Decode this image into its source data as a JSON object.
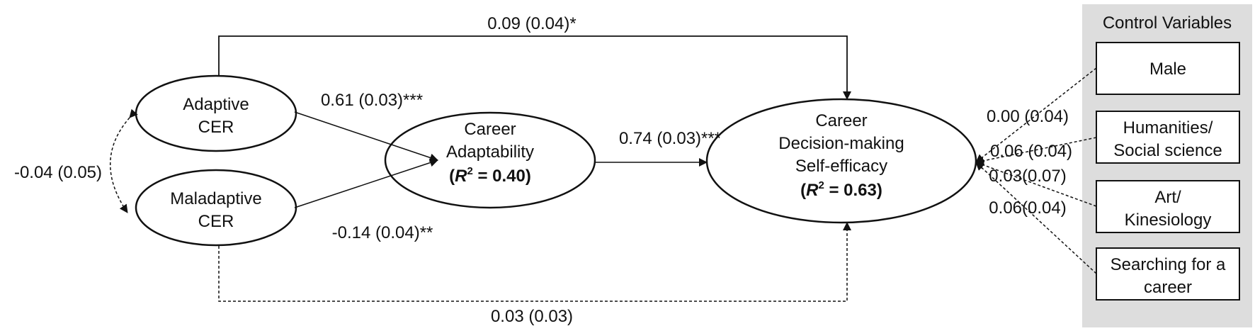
{
  "nodes": {
    "adaptive_cer": {
      "line1": "Adaptive",
      "line2": "CER"
    },
    "maladaptive_cer": {
      "line1": "Maladaptive",
      "line2": "CER"
    },
    "career_adaptability": {
      "line1": "Career",
      "line2": "Adaptability",
      "r2_symbol": "R",
      "r2_superscript": "2",
      "r2_value": " = 0.40"
    },
    "cdmse": {
      "line1": "Career",
      "line2": "Decision-making",
      "line3": "Self-efficacy",
      "r2_symbol": "R",
      "r2_superscript": "2",
      "r2_value": " = 0.63"
    }
  },
  "paths": {
    "adaptive_to_cdmse": "0.09 (0.04)*",
    "adaptive_to_adaptability": "0.61 (0.03)***",
    "maladaptive_to_adaptability": "-0.14 (0.04)**",
    "adaptability_to_cdmse": "0.74 (0.03)***",
    "maladaptive_to_cdmse": "0.03 (0.03)",
    "cer_covariance": "-0.04 (0.05)"
  },
  "controls": {
    "title": "Control Variables",
    "male": {
      "line1": "Male",
      "coef": "0.00 (0.04)"
    },
    "humanities": {
      "line1": "Humanities/",
      "line2": "Social science",
      "coef": "0.06 (0.04)"
    },
    "art": {
      "line1": "Art/",
      "line2": "Kinesiology",
      "coef": "0.03(0.07)"
    },
    "searching": {
      "line1": "Searching for a",
      "line2": "career",
      "coef": "0.06(0.04)"
    }
  },
  "colors": {
    "panel_bg": "#dddddd",
    "stroke": "#111111"
  }
}
